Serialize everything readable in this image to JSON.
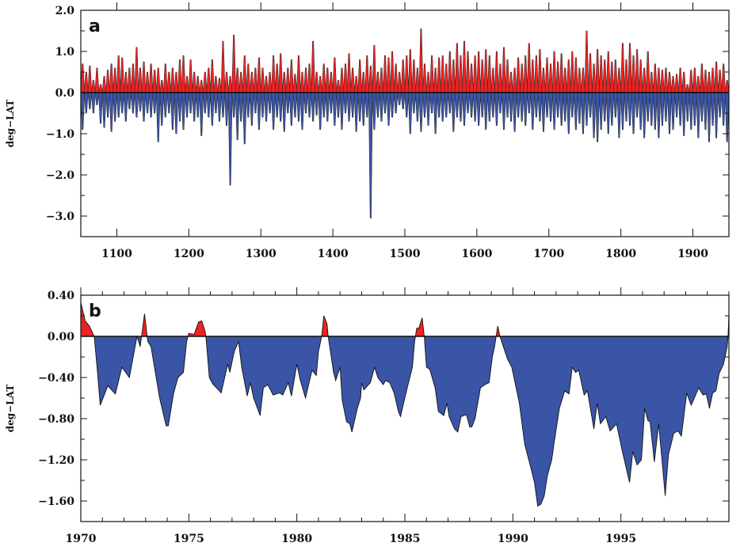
{
  "colors": {
    "positive": "#ee2222",
    "negative": "#3a55a6",
    "outline": "#111111"
  },
  "chart_data": [
    {
      "type": "area",
      "panel_label": "a",
      "ylabel": "deg−LAT",
      "xlabel": "",
      "xlim": [
        1050,
        1950
      ],
      "ylim": [
        -3.5,
        2.0
      ],
      "x_ticks": [
        1100,
        1200,
        1300,
        1400,
        1500,
        1600,
        1700,
        1800,
        1900
      ],
      "x_tick_labels": [
        "1100",
        "1200",
        "1300",
        "1400",
        "1500",
        "1600",
        "1700",
        "1800",
        "1900"
      ],
      "y_ticks": [
        2.0,
        1.0,
        0.0,
        -1.0,
        -2.0,
        -3.0
      ],
      "y_tick_labels": [
        "2.0",
        "1.0",
        "0.0",
        "−1.0",
        "−2.0",
        "−3.0"
      ],
      "y_minor_step": 0.5,
      "grid": false,
      "x_start": 1050,
      "x_step": 5,
      "series": [
        {
          "name": "positive",
          "values": [
            0.7,
            0.5,
            0.65,
            0.3,
            0.6,
            0.2,
            0.4,
            0.55,
            0.7,
            0.6,
            0.9,
            0.85,
            0.5,
            0.6,
            0.7,
            1.1,
            0.6,
            0.75,
            0.5,
            0.7,
            0.55,
            0.6,
            0.3,
            0.7,
            0.5,
            0.6,
            0.5,
            0.8,
            0.9,
            0.4,
            0.8,
            0.5,
            0.4,
            0.3,
            0.5,
            0.6,
            0.8,
            0.4,
            0.35,
            1.25,
            0.5,
            0.4,
            1.4,
            0.6,
            0.5,
            0.9,
            0.7,
            0.5,
            0.6,
            0.85,
            0.6,
            0.4,
            0.5,
            0.9,
            0.7,
            0.95,
            0.5,
            0.6,
            0.8,
            0.45,
            0.9,
            0.5,
            0.6,
            0.7,
            1.25,
            0.5,
            0.4,
            0.7,
            0.6,
            0.5,
            0.85,
            0.3,
            0.6,
            0.7,
            0.95,
            0.6,
            0.4,
            0.8,
            0.5,
            0.9,
            0.65,
            1.15,
            0.5,
            0.6,
            0.9,
            0.85,
            1.0,
            0.7,
            0.5,
            0.8,
            0.9,
            1.05,
            0.8,
            0.6,
            1.55,
            0.7,
            0.5,
            0.9,
            0.6,
            0.85,
            0.9,
            0.7,
            1.0,
            0.8,
            1.2,
            0.9,
            1.25,
            1.0,
            0.7,
            0.9,
            1.0,
            0.8,
            1.05,
            0.9,
            0.6,
            1.0,
            0.7,
            1.1,
            0.8,
            0.5,
            0.6,
            0.85,
            0.7,
            0.9,
            1.2,
            0.8,
            0.9,
            1.05,
            0.6,
            0.85,
            0.7,
            1.0,
            0.75,
            0.95,
            0.6,
            0.8,
            1.0,
            0.85,
            0.6,
            0.6,
            1.5,
            0.95,
            0.7,
            1.05,
            0.9,
            0.8,
            1.0,
            0.75,
            0.8,
            0.6,
            1.2,
            0.8,
            1.2,
            0.9,
            1.05,
            0.8,
            0.6,
            1.0,
            0.5,
            0.7,
            0.6,
            0.55,
            0.6,
            0.5,
            0.4,
            0.45,
            0.6,
            0.5,
            0.2,
            0.55,
            0.6,
            0.4,
            0.7,
            0.55,
            0.5,
            0.6,
            0.75,
            0.55,
            0.7,
            0.3
          ]
        },
        {
          "name": "negative",
          "values": [
            -0.9,
            -0.5,
            -0.4,
            -0.5,
            -0.3,
            -0.75,
            -0.85,
            -0.6,
            -0.95,
            -0.7,
            -0.6,
            -0.5,
            -0.7,
            -0.4,
            -0.5,
            -0.6,
            -0.45,
            -0.7,
            -0.5,
            -0.6,
            -0.5,
            -1.2,
            -0.8,
            -0.6,
            -0.5,
            -0.9,
            -1.0,
            -0.7,
            -0.9,
            -0.6,
            -0.5,
            -0.7,
            -0.6,
            -1.05,
            -0.5,
            -0.6,
            -0.8,
            -0.5,
            -0.7,
            -0.6,
            -0.8,
            -2.25,
            -0.6,
            -1.15,
            -0.7,
            -1.25,
            -0.6,
            -0.8,
            -0.5,
            -0.9,
            -0.6,
            -0.7,
            -0.5,
            -0.9,
            -0.6,
            -0.7,
            -0.95,
            -0.5,
            -0.8,
            -0.6,
            -0.7,
            -0.9,
            -0.5,
            -0.6,
            -0.7,
            -0.55,
            -0.9,
            -0.6,
            -0.7,
            -0.5,
            -0.8,
            -0.6,
            -0.9,
            -0.5,
            -0.7,
            -0.6,
            -0.95,
            -0.7,
            -0.8,
            -0.6,
            -3.05,
            -0.9,
            -0.6,
            -0.7,
            -0.5,
            -0.8,
            -0.6,
            -0.5,
            -0.3,
            -0.4,
            -0.6,
            -1.0,
            -0.5,
            -0.7,
            -0.95,
            -0.6,
            -0.8,
            -0.5,
            -1.0,
            -0.6,
            -0.7,
            -0.6,
            -0.5,
            -0.95,
            -0.6,
            -0.7,
            -0.8,
            -0.5,
            -0.6,
            -0.7,
            -0.8,
            -0.6,
            -0.9,
            -0.7,
            -0.6,
            -0.8,
            -0.5,
            -0.9,
            -0.6,
            -0.7,
            -0.95,
            -0.6,
            -0.7,
            -0.8,
            -0.5,
            -0.9,
            -0.6,
            -0.7,
            -0.95,
            -0.6,
            -0.7,
            -0.9,
            -0.6,
            -0.8,
            -0.7,
            -1.0,
            -0.6,
            -0.9,
            -0.75,
            -1.0,
            -0.8,
            -0.6,
            -1.1,
            -1.2,
            -0.9,
            -0.7,
            -1.0,
            -0.8,
            -0.6,
            -1.1,
            -0.9,
            -0.7,
            -0.8,
            -1.0,
            -0.6,
            -0.9,
            -1.1,
            -0.7,
            -0.8,
            -0.9,
            -1.1,
            -0.8,
            -0.7,
            -1.0,
            -0.9,
            -0.6,
            -0.8,
            -1.05,
            -0.7,
            -0.9,
            -0.8,
            -1.1,
            -0.7,
            -0.9,
            -1.2,
            -0.8,
            -1.1,
            -0.6,
            -0.8,
            -1.2
          ]
        }
      ]
    },
    {
      "type": "area",
      "panel_label": "b",
      "ylabel": "deg−LAT",
      "xlabel": "",
      "xlim": [
        1970,
        2000
      ],
      "ylim": [
        -1.8,
        0.4
      ],
      "x_ticks": [
        1970,
        1975,
        1980,
        1985,
        1990,
        1995
      ],
      "x_tick_labels": [
        "1970",
        "1975",
        "1980",
        "1985",
        "1990",
        "1995"
      ],
      "x_minor_step": 1,
      "y_ticks": [
        0.4,
        0.0,
        -0.4,
        -0.8,
        -1.2,
        -1.6
      ],
      "y_tick_labels": [
        "0.40",
        "0.00",
        "−0.40",
        "−0.80",
        "−1.20",
        "−1.60"
      ],
      "y_minor_step": 0.2,
      "grid": false,
      "x": [
        1970.0,
        1970.2,
        1970.4,
        1970.55,
        1970.62,
        1970.75,
        1970.9,
        1971.25,
        1971.6,
        1971.9,
        1972.25,
        1972.6,
        1972.75,
        1972.95,
        1973.1,
        1973.25,
        1973.65,
        1973.95,
        1974.05,
        1974.3,
        1974.5,
        1974.75,
        1974.9,
        1975.0,
        1975.25,
        1975.45,
        1975.6,
        1975.75,
        1975.8,
        1975.95,
        1976.1,
        1976.5,
        1976.8,
        1976.9,
        1977.1,
        1977.3,
        1977.45,
        1977.7,
        1977.85,
        1978.0,
        1978.3,
        1978.45,
        1978.65,
        1978.9,
        1979.2,
        1979.35,
        1979.6,
        1979.75,
        1980.0,
        1980.15,
        1980.4,
        1980.7,
        1980.9,
        1981.0,
        1981.15,
        1981.25,
        1981.4,
        1981.45,
        1981.7,
        1981.8,
        1982.0,
        1982.1,
        1982.3,
        1982.45,
        1982.55,
        1982.8,
        1982.95,
        1983.0,
        1983.1,
        1983.4,
        1983.6,
        1983.75,
        1984.0,
        1984.1,
        1984.3,
        1984.5,
        1984.7,
        1984.8,
        1985.05,
        1985.35,
        1985.45,
        1985.55,
        1985.65,
        1985.8,
        1985.9,
        1986.0,
        1986.15,
        1986.4,
        1986.55,
        1986.8,
        1986.95,
        1987.05,
        1987.3,
        1987.45,
        1987.6,
        1987.85,
        1988.0,
        1988.1,
        1988.25,
        1988.5,
        1988.7,
        1988.9,
        1989.05,
        1989.15,
        1989.3,
        1989.4,
        1989.75,
        1989.95,
        1990.3,
        1990.55,
        1990.8,
        1991.0,
        1991.15,
        1991.3,
        1991.45,
        1991.6,
        1991.8,
        1991.9,
        1992.15,
        1992.4,
        1992.6,
        1992.75,
        1992.9,
        1993.05,
        1993.3,
        1993.45,
        1993.75,
        1993.9,
        1994.05,
        1994.3,
        1994.5,
        1994.8,
        1995.05,
        1995.4,
        1995.55,
        1995.75,
        1995.95,
        1996.1,
        1996.25,
        1996.35,
        1996.55,
        1996.75,
        1997.05,
        1997.2,
        1997.45,
        1997.65,
        1997.8,
        1998.05,
        1998.25,
        1998.4,
        1998.6,
        1998.8,
        1998.95,
        1999.1,
        1999.25,
        1999.4,
        1999.55,
        1999.75,
        1999.92,
        1999.96,
        2000.0
      ],
      "values": [
        0.33,
        0.15,
        0.1,
        0.03,
        0.0,
        -0.3,
        -0.67,
        -0.48,
        -0.56,
        -0.3,
        -0.4,
        0.0,
        -0.1,
        0.22,
        -0.05,
        -0.1,
        -0.6,
        -0.87,
        -0.87,
        -0.55,
        -0.4,
        -0.35,
        -0.05,
        0.03,
        0.02,
        0.14,
        0.15,
        0.05,
        -0.02,
        -0.4,
        -0.46,
        -0.55,
        -0.27,
        -0.35,
        -0.15,
        -0.05,
        -0.3,
        -0.58,
        -0.45,
        -0.6,
        -0.77,
        -0.5,
        -0.47,
        -0.57,
        -0.55,
        -0.57,
        -0.45,
        -0.58,
        -0.27,
        -0.42,
        -0.6,
        -0.33,
        -0.38,
        -0.15,
        0.0,
        0.2,
        0.12,
        0.0,
        -0.35,
        -0.43,
        -0.3,
        -0.62,
        -0.83,
        -0.85,
        -0.93,
        -0.7,
        -0.6,
        -0.45,
        -0.52,
        -0.45,
        -0.3,
        -0.4,
        -0.47,
        -0.43,
        -0.45,
        -0.55,
        -0.73,
        -0.78,
        -0.55,
        -0.3,
        -0.05,
        0.08,
        0.08,
        0.18,
        0.0,
        -0.3,
        -0.32,
        -0.5,
        -0.73,
        -0.77,
        -0.65,
        -0.78,
        -0.9,
        -0.93,
        -0.78,
        -0.76,
        -0.88,
        -0.88,
        -0.8,
        -0.5,
        -0.47,
        -0.45,
        -0.2,
        -0.1,
        0.1,
        0.0,
        -0.22,
        -0.3,
        -0.65,
        -1.05,
        -1.25,
        -1.42,
        -1.65,
        -1.63,
        -1.55,
        -1.35,
        -1.2,
        -1.05,
        -0.7,
        -0.53,
        -0.56,
        -0.3,
        -0.35,
        -0.33,
        -0.57,
        -0.53,
        -0.9,
        -0.65,
        -0.85,
        -0.78,
        -0.92,
        -0.85,
        -1.1,
        -1.42,
        -1.12,
        -1.25,
        -1.2,
        -0.7,
        -0.82,
        -0.83,
        -1.22,
        -0.85,
        -1.55,
        -1.15,
        -0.94,
        -0.92,
        -0.97,
        -0.55,
        -0.67,
        -0.6,
        -0.5,
        -0.57,
        -0.56,
        -0.7,
        -0.55,
        -0.53,
        -0.36,
        -0.27,
        -0.1,
        0.0,
        0.22
      ]
    }
  ]
}
